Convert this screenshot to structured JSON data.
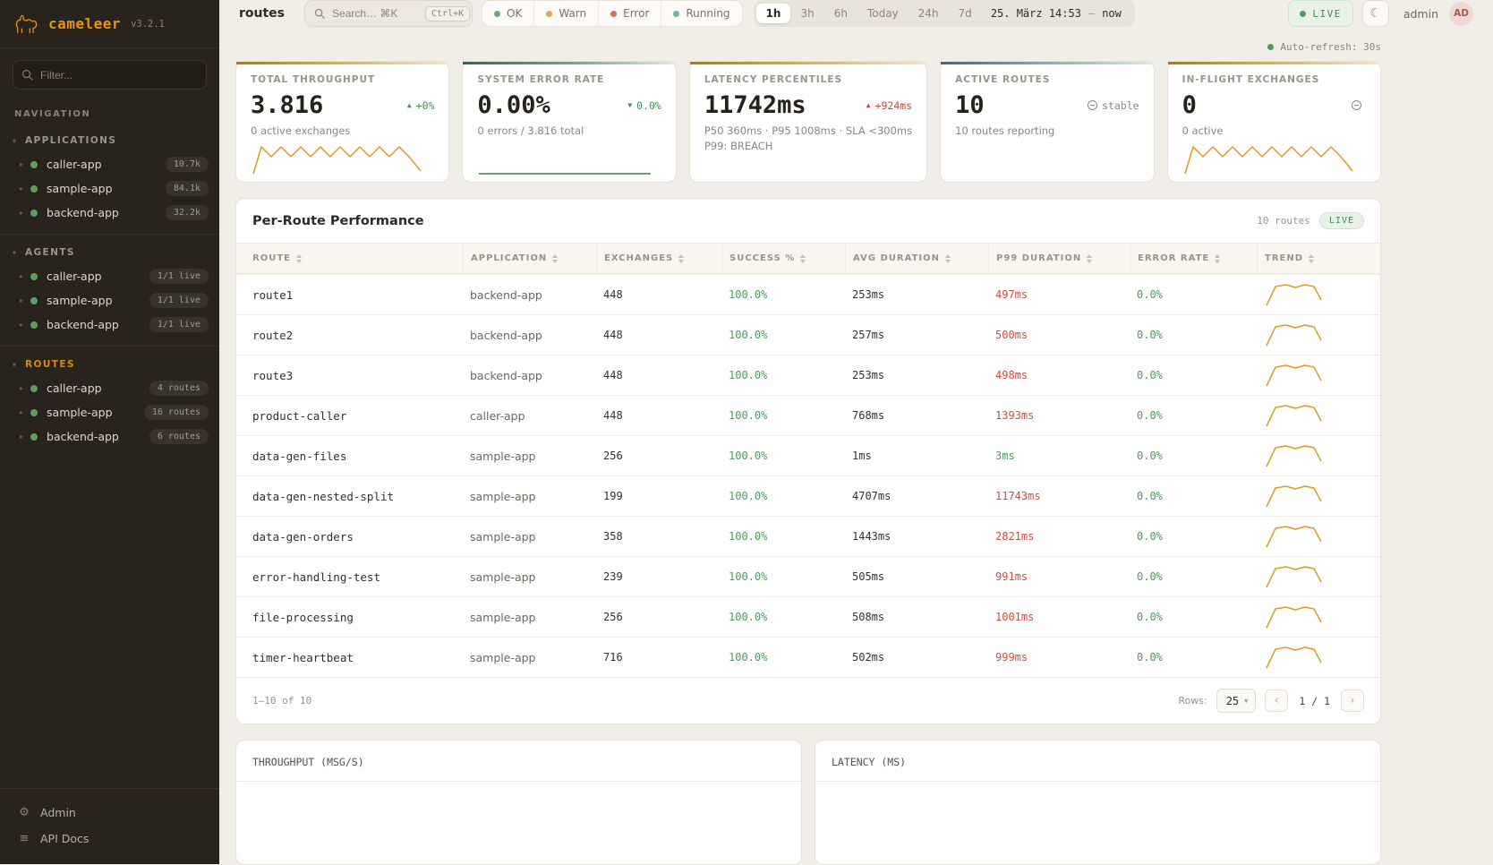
{
  "app": {
    "name": "cameleer",
    "version": "v3.2.1"
  },
  "sidebar": {
    "filter_placeholder": "Filter...",
    "nav_label": "NAVIGATION",
    "groups": [
      {
        "label": "APPLICATIONS",
        "items": [
          {
            "name": "caller-app",
            "badge": "10.7k"
          },
          {
            "name": "sample-app",
            "badge": "84.1k"
          },
          {
            "name": "backend-app",
            "badge": "32.2k"
          }
        ]
      },
      {
        "label": "AGENTS",
        "items": [
          {
            "name": "caller-app",
            "badge": "1/1 live"
          },
          {
            "name": "sample-app",
            "badge": "1/1 live"
          },
          {
            "name": "backend-app",
            "badge": "1/1 live"
          }
        ]
      },
      {
        "label": "ROUTES",
        "items": [
          {
            "name": "caller-app",
            "badge": "4 routes"
          },
          {
            "name": "sample-app",
            "badge": "16 routes"
          },
          {
            "name": "backend-app",
            "badge": "6 routes"
          }
        ]
      }
    ],
    "admin_label": "Admin",
    "api_docs_label": "API Docs"
  },
  "topbar": {
    "page_title": "routes",
    "search_placeholder": "Search… ⌘K",
    "search_shortcut": "Ctrl+K",
    "filters": [
      {
        "label": "OK",
        "dot": "#74a678"
      },
      {
        "label": "Warn",
        "dot": "#dca75f"
      },
      {
        "label": "Error",
        "dot": "#d66a5d"
      },
      {
        "label": "Running",
        "dot": "#72b0a8"
      }
    ],
    "ranges": [
      {
        "label": "1h",
        "state": "active"
      },
      {
        "label": "3h"
      },
      {
        "label": "6h"
      },
      {
        "label": "Today"
      },
      {
        "label": "24h"
      },
      {
        "label": "7d"
      }
    ],
    "date_start": "25. März 14:53",
    "date_sep": "—",
    "date_end": "now",
    "live_label": "LIVE",
    "user_name": "admin",
    "user_initials": "AD"
  },
  "autorefresh_label": "Auto-refresh: 30s",
  "kpis": [
    {
      "title": "TOTAL THROUGHPUT",
      "value": "3.816",
      "delta": "+0%",
      "delta_class": "up good",
      "subtext": "0 active exchanges",
      "subtext2": "",
      "spark": "zigzag",
      "accent": "orange"
    },
    {
      "title": "SYSTEM ERROR RATE",
      "value": "0.00%",
      "delta": "0.0%",
      "delta_class": "down good",
      "subtext": "0 errors / 3.816 total",
      "subtext2": "",
      "spark": "flat",
      "accent": "green"
    },
    {
      "title": "LATENCY PERCENTILES",
      "value": "11742ms",
      "delta": "+924ms",
      "delta_class": "up bad",
      "subtext": "P50 360ms · P95 1008ms · SLA <300ms",
      "subtext2": "P99: BREACH",
      "spark": "none",
      "accent": "orange"
    },
    {
      "title": "ACTIVE ROUTES",
      "value": "10",
      "delta": "stable",
      "delta_class": "stable muted",
      "subtext": "10 routes reporting",
      "subtext2": "",
      "spark": "none",
      "accent": "teal"
    },
    {
      "title": "IN-FLIGHT EXCHANGES",
      "value": "0",
      "delta": "",
      "delta_class": "stable muted",
      "subtext": "0 active",
      "subtext2": "",
      "spark": "zigzag",
      "accent": "orange"
    }
  ],
  "table": {
    "title": "Per-Route Performance",
    "count_label": "10 routes",
    "live_label": "LIVE",
    "columns": [
      "ROUTE",
      "APPLICATION",
      "EXCHANGES",
      "SUCCESS %",
      "AVG DURATION",
      "P99 DURATION",
      "ERROR RATE",
      "TREND"
    ],
    "rows": [
      {
        "route": "route1",
        "app": "backend-app",
        "exchanges": "448",
        "success": "100.0%",
        "avg": "253ms",
        "p99": "497ms",
        "p99_tone": "bad",
        "error": "0.0%"
      },
      {
        "route": "route2",
        "app": "backend-app",
        "exchanges": "448",
        "success": "100.0%",
        "avg": "257ms",
        "p99": "500ms",
        "p99_tone": "bad",
        "error": "0.0%"
      },
      {
        "route": "route3",
        "app": "backend-app",
        "exchanges": "448",
        "success": "100.0%",
        "avg": "253ms",
        "p99": "498ms",
        "p99_tone": "bad",
        "error": "0.0%"
      },
      {
        "route": "product-caller",
        "app": "caller-app",
        "exchanges": "448",
        "success": "100.0%",
        "avg": "768ms",
        "p99": "1393ms",
        "p99_tone": "bad",
        "error": "0.0%"
      },
      {
        "route": "data-gen-files",
        "app": "sample-app",
        "exchanges": "256",
        "success": "100.0%",
        "avg": "1ms",
        "p99": "3ms",
        "p99_tone": "good",
        "error": "0.0%"
      },
      {
        "route": "data-gen-nested-split",
        "app": "sample-app",
        "exchanges": "199",
        "success": "100.0%",
        "avg": "4707ms",
        "p99": "11743ms",
        "p99_tone": "bad",
        "error": "0.0%"
      },
      {
        "route": "data-gen-orders",
        "app": "sample-app",
        "exchanges": "358",
        "success": "100.0%",
        "avg": "1443ms",
        "p99": "2821ms",
        "p99_tone": "bad",
        "error": "0.0%"
      },
      {
        "route": "error-handling-test",
        "app": "sample-app",
        "exchanges": "239",
        "success": "100.0%",
        "avg": "505ms",
        "p99": "991ms",
        "p99_tone": "bad",
        "error": "0.0%"
      },
      {
        "route": "file-processing",
        "app": "sample-app",
        "exchanges": "256",
        "success": "100.0%",
        "avg": "508ms",
        "p99": "1001ms",
        "p99_tone": "bad",
        "error": "0.0%"
      },
      {
        "route": "timer-heartbeat",
        "app": "sample-app",
        "exchanges": "716",
        "success": "100.0%",
        "avg": "502ms",
        "p99": "999ms",
        "p99_tone": "bad",
        "error": "0.0%"
      }
    ],
    "footer": {
      "range": "1–10 of 10",
      "rows_label": "Rows:",
      "rows_value": "25",
      "prev": "‹",
      "page": "1 / 1",
      "next": "›"
    }
  },
  "bottom_charts": [
    {
      "title": "THROUGHPUT (MSG/S)"
    },
    {
      "title": "LATENCY (MS)"
    }
  ]
}
